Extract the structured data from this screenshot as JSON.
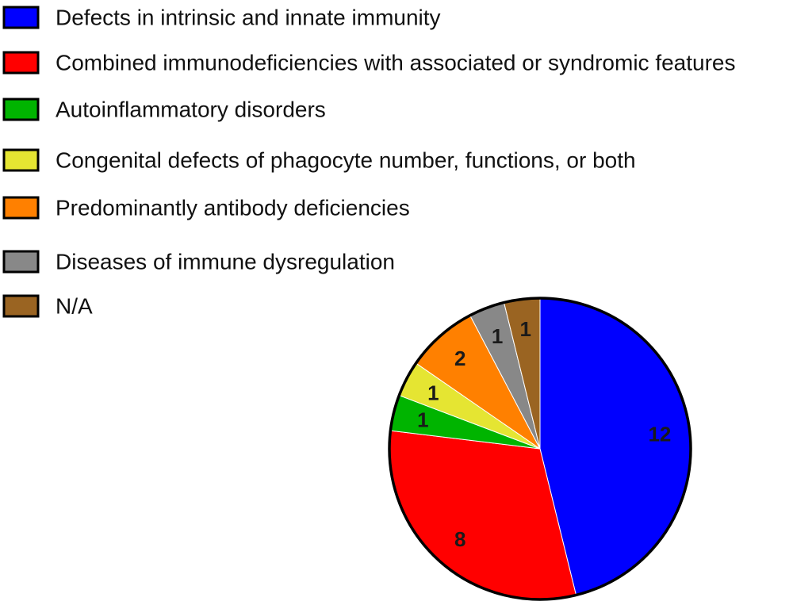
{
  "chart_data": {
    "type": "pie",
    "title": "",
    "categories": [
      "Defects in intrinsic and innate immunity",
      "Combined immunodeficiencies with associated or syndromic features",
      "Autoinflammatory disorders",
      "Congenital defects of phagocyte number, functions, or both",
      "Predominantly antibody deficiencies",
      "Diseases of immune dysregulation",
      "N/A"
    ],
    "values": [
      12,
      8,
      1,
      1,
      2,
      1,
      1
    ],
    "colors": [
      "#0000ff",
      "#ff0000",
      "#00b400",
      "#e5e532",
      "#ff8000",
      "#888888",
      "#9a6422"
    ],
    "start_angle_deg": 0,
    "direction": "clockwise",
    "legend_position": "top-left",
    "data_labels_shown": true
  }
}
